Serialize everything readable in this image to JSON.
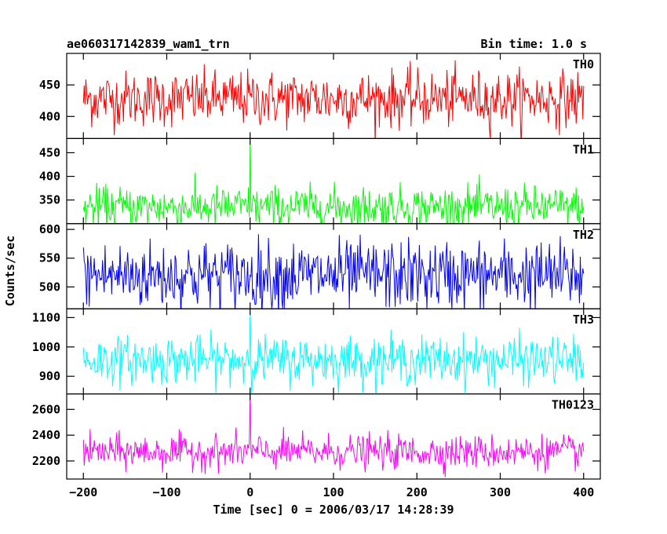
{
  "header": {
    "title": "ae060317142839_wam1_trn",
    "bin_time": "Bin time: 1.0 s"
  },
  "axes": {
    "xlabel": "Time [sec] 0 = 2006/03/17 14:28:39",
    "ylabel": "Counts/sec"
  },
  "chart_data": {
    "type": "line",
    "title": "ae060317142839_wam1_trn",
    "subtitle": "Bin time: 1.0 s",
    "xlabel": "Time [sec] 0 = 2006/03/17 14:28:39",
    "ylabel": "Counts/sec",
    "xlim": [
      -220,
      420
    ],
    "x_ticks": [
      -200,
      -100,
      0,
      100,
      200,
      300,
      400
    ],
    "x_tick_labels": [
      "−200",
      "−100",
      "0",
      "100",
      "200",
      "300",
      "400"
    ],
    "x_range": [
      -200,
      400
    ],
    "bin_time_s": 1.0,
    "panels": [
      {
        "name": "TH0",
        "color": "#ff0000",
        "mean": 428,
        "sigma": 22,
        "ylim": [
          365,
          500
        ],
        "yticks": [
          400,
          450
        ],
        "spikes": []
      },
      {
        "name": "TH1",
        "color": "#00ff00",
        "mean": 335,
        "sigma": 22,
        "ylim": [
          300,
          480
        ],
        "yticks": [
          350,
          400,
          450
        ],
        "spikes": [
          {
            "x": 0,
            "y": 475
          }
        ]
      },
      {
        "name": "TH2",
        "color": "#0000ff",
        "mean": 520,
        "sigma": 30,
        "ylim": [
          462,
          610
        ],
        "yticks": [
          500,
          550,
          600
        ],
        "spikes": []
      },
      {
        "name": "TH3",
        "color": "#00ffff",
        "mean": 955,
        "sigma": 40,
        "ylim": [
          840,
          1130
        ],
        "yticks": [
          900,
          1000,
          1100
        ],
        "spikes": [
          {
            "x": 0,
            "y": 1125
          }
        ]
      },
      {
        "name": "TH0123",
        "color": "#ff00ff",
        "mean": 2270,
        "sigma": 65,
        "ylim": [
          2060,
          2720
        ],
        "yticks": [
          2200,
          2400,
          2600
        ],
        "spikes": [
          {
            "x": 0,
            "y": 2720
          }
        ]
      }
    ]
  }
}
